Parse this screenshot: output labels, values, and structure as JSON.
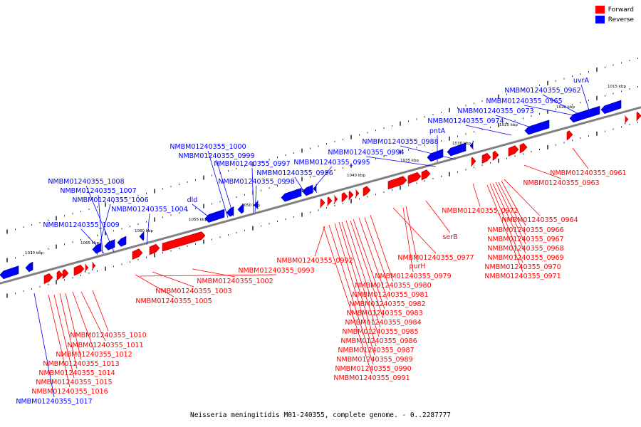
{
  "legend": [
    {
      "label": "Forward",
      "color": "#ff0000"
    },
    {
      "label": "Reverse",
      "color": "#0000ff"
    }
  ],
  "caption": "Neisseria meningitidis M01-240355, complete genome. - 0..2287777",
  "colors": {
    "forward": "#ff0000",
    "reverse": "#0000ff",
    "axis": "#808080"
  },
  "scale_labels": [
    "1070 kbp",
    "1065 kbp",
    "1060 kbp",
    "1055 kbp",
    "1050 kbp",
    "1045 kbp",
    "1040 kbp",
    "1035 kbp",
    "1030 kbp",
    "1025 kbp",
    "1020 kbp",
    "1015 kbp"
  ],
  "reverse_labels": [
    "uvrA",
    "NMBM01240355_0962",
    "NMBM01240355_0965",
    "NMBM01240355_0973",
    "NMBM01240355_0974",
    "pntA",
    "NMBM01240355_0988",
    "NMBM01240355_0994",
    "NMBM01240355_0995",
    "NMBM01240355_0996",
    "NMBM01240355_1000",
    "NMBM01240355_0999",
    "NMBM01240355_0997",
    "NMBM01240355_0998",
    "dld",
    "NMBM01240355_1008",
    "NMBM01240355_1007",
    "NMBM01240355_1006",
    "NMBM01240355_1004",
    "NMBM01240355_1009",
    "NMBM01240355_1017"
  ],
  "forward_labels": [
    "NMBM01240355_0961",
    "NMBM01240355_0963",
    "NMBM01240355_0972",
    "NMBM01240355_0964",
    "NMBM01240355_0966",
    "NMBM01240355_0967",
    "NMBM01240355_0968",
    "NMBM01240355_0969",
    "NMBM01240355_0970",
    "NMBM01240355_0971",
    "serB",
    "NMBM01240355_0977",
    "purH",
    "NMBM01240355_0979",
    "NMBM01240355_0980",
    "NMBM01240355_0981",
    "NMBM01240355_0982",
    "NMBM01240355_0983",
    "NMBM01240355_0984",
    "NMBM01240355_0985",
    "NMBM01240355_0986",
    "NMBM01240355_0987",
    "NMBM01240355_0989",
    "NMBM01240355_0990",
    "NMBM01240355_0991",
    "NMBM01240355_0992",
    "NMBM01240355_0993",
    "NMBM01240355_1002",
    "NMBM01240355_1003",
    "NMBM01240355_1005",
    "NMBM01240355_1010",
    "NMBM01240355_1011",
    "NMBM01240355_1012",
    "NMBM01240355_1013",
    "NMBM01240355_1014",
    "NMBM01240355_1015",
    "NMBM01240355_1016"
  ]
}
